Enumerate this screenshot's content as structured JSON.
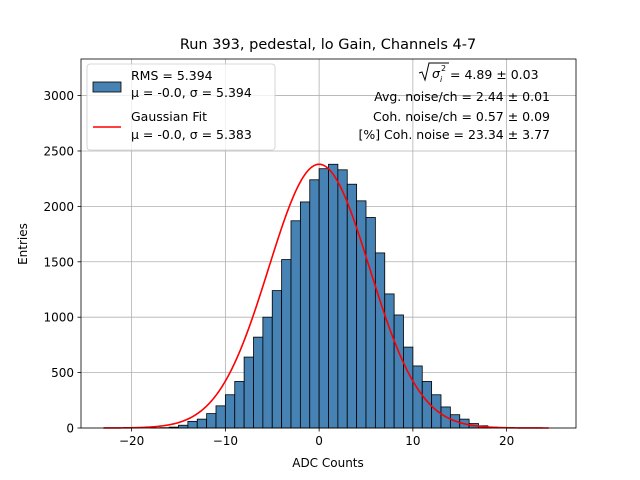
{
  "chart_data": {
    "type": "bar",
    "title": "Run 393, pedestal, lo Gain, Channels 4-7",
    "xlabel": "ADC Counts",
    "ylabel": "Entries",
    "xlim": [
      -25.4,
      27.4
    ],
    "ylim": [
      0,
      3330
    ],
    "xticks": [
      -20,
      -10,
      0,
      10,
      20
    ],
    "xtick_labels": [
      "−20",
      "−10",
      "0",
      "10",
      "20"
    ],
    "yticks": [
      0,
      500,
      1000,
      1500,
      2000,
      2500,
      3000
    ],
    "ytick_labels": [
      "0",
      "500",
      "1000",
      "1500",
      "2000",
      "2500",
      "3000"
    ],
    "grid": true,
    "legend_position": "top-left",
    "histogram": {
      "bin_width": 1,
      "bin_left_edges": [
        -23,
        -22,
        -21,
        -20,
        -19,
        -18,
        -17,
        -16,
        -15,
        -14,
        -13,
        -12,
        -11,
        -10,
        -9,
        -8,
        -7,
        -6,
        -5,
        -4,
        -3,
        -2,
        -1,
        0,
        1,
        2,
        3,
        4,
        5,
        6,
        7,
        8,
        9,
        10,
        11,
        12,
        13,
        14,
        15,
        16,
        17,
        18,
        19,
        20,
        21,
        22,
        23,
        24
      ],
      "values": [
        0,
        0,
        0,
        0,
        0,
        1,
        3,
        8,
        25,
        60,
        80,
        130,
        200,
        300,
        420,
        640,
        820,
        1000,
        1240,
        1520,
        1870,
        2040,
        2240,
        2340,
        2380,
        2330,
        2200,
        2050,
        1900,
        1580,
        1210,
        1020,
        730,
        560,
        420,
        300,
        190,
        120,
        80,
        40,
        20,
        8,
        3,
        1,
        0,
        0,
        0,
        0
      ],
      "color": "#4682b4",
      "edge_color": "#000000"
    },
    "fit": {
      "type": "gaussian",
      "amplitude": 2380,
      "mu": -0.0,
      "sigma": 5.383,
      "x_range": [
        -23,
        24.5
      ],
      "color": "#ff0000"
    },
    "legend": [
      {
        "kind": "patch",
        "line1": "RMS = 5.394",
        "line2": "μ = -0.0, σ = 5.394"
      },
      {
        "kind": "line",
        "line1": "Gaussian Fit",
        "line2": "μ = -0.0, σ = 5.383"
      }
    ],
    "annotations": {
      "line1_value": " = 4.89 ± 0.03",
      "line2": "Avg. noise/ch = 2.44 ± 0.01",
      "line3": "Coh. noise/ch = 0.57 ± 0.09",
      "line4": "[%] Coh. noise = 23.34 ± 3.77"
    }
  }
}
